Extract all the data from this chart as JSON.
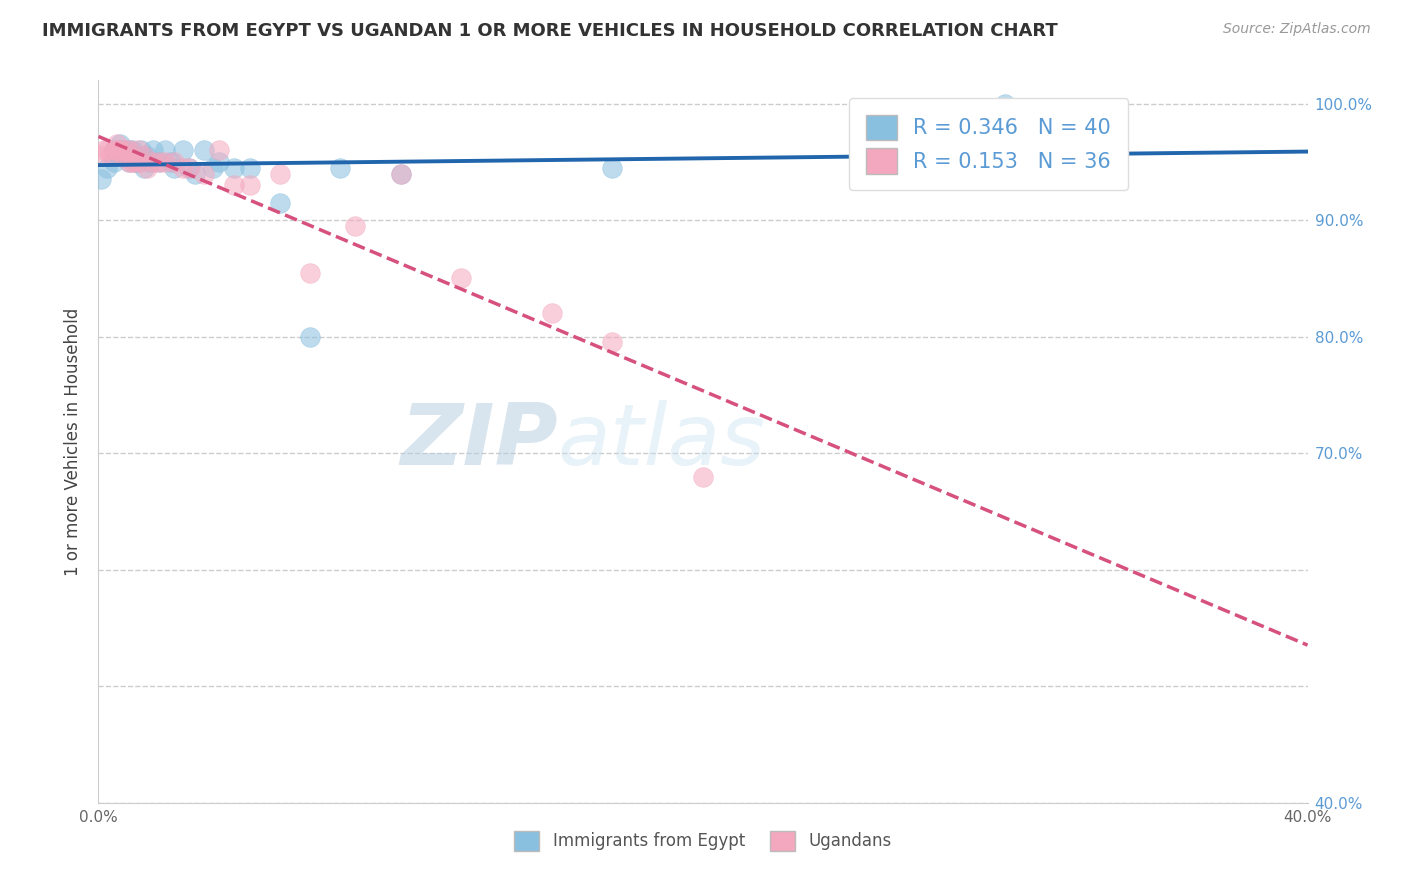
{
  "title": "IMMIGRANTS FROM EGYPT VS UGANDAN 1 OR MORE VEHICLES IN HOUSEHOLD CORRELATION CHART",
  "source_text": "Source: ZipAtlas.com",
  "ylabel": "1 or more Vehicles in Household",
  "xlim": [
    0.0,
    0.4
  ],
  "ylim": [
    0.4,
    1.02
  ],
  "xtick_positions": [
    0.0,
    0.05,
    0.1,
    0.15,
    0.2,
    0.25,
    0.3,
    0.35,
    0.4
  ],
  "xticklabels": [
    "0.0%",
    "",
    "",
    "",
    "",
    "",
    "",
    "",
    "40.0%"
  ],
  "ytick_positions": [
    0.4,
    0.5,
    0.6,
    0.7,
    0.8,
    0.9,
    1.0
  ],
  "yticklabels_right": [
    "40.0%",
    "",
    "",
    "70.0%",
    "80.0%",
    "90.0%",
    "100.0%"
  ],
  "legend_labels": [
    "Immigrants from Egypt",
    "Ugandans"
  ],
  "r_egypt": 0.346,
  "n_egypt": 40,
  "r_uganda": 0.153,
  "n_uganda": 36,
  "color_egypt": "#89bfdf",
  "color_uganda": "#f4a8bf",
  "trendline_color_egypt": "#2166ac",
  "trendline_color_uganda": "#d6517d",
  "watermark_zip": "ZIP",
  "watermark_atlas": "atlas",
  "egypt_x": [
    0.001,
    0.003,
    0.005,
    0.005,
    0.006,
    0.007,
    0.007,
    0.008,
    0.008,
    0.009,
    0.01,
    0.01,
    0.011,
    0.012,
    0.012,
    0.013,
    0.014,
    0.015,
    0.015,
    0.016,
    0.017,
    0.018,
    0.02,
    0.022,
    0.024,
    0.025,
    0.028,
    0.03,
    0.032,
    0.035,
    0.038,
    0.04,
    0.045,
    0.05,
    0.06,
    0.07,
    0.08,
    0.1,
    0.17,
    0.3
  ],
  "egypt_y": [
    0.935,
    0.945,
    0.96,
    0.95,
    0.955,
    0.965,
    0.96,
    0.955,
    0.96,
    0.955,
    0.96,
    0.95,
    0.96,
    0.955,
    0.95,
    0.95,
    0.96,
    0.955,
    0.945,
    0.955,
    0.95,
    0.96,
    0.95,
    0.96,
    0.95,
    0.945,
    0.96,
    0.945,
    0.94,
    0.96,
    0.945,
    0.95,
    0.945,
    0.945,
    0.915,
    0.8,
    0.945,
    0.94,
    0.945,
    1.0
  ],
  "uganda_x": [
    0.001,
    0.002,
    0.003,
    0.004,
    0.005,
    0.006,
    0.006,
    0.007,
    0.008,
    0.009,
    0.01,
    0.01,
    0.011,
    0.012,
    0.013,
    0.014,
    0.015,
    0.016,
    0.018,
    0.02,
    0.022,
    0.025,
    0.028,
    0.03,
    0.035,
    0.04,
    0.045,
    0.05,
    0.06,
    0.07,
    0.085,
    0.1,
    0.12,
    0.15,
    0.17,
    0.2
  ],
  "uganda_y": [
    0.955,
    0.96,
    0.96,
    0.955,
    0.96,
    0.965,
    0.96,
    0.96,
    0.955,
    0.96,
    0.95,
    0.96,
    0.95,
    0.95,
    0.96,
    0.95,
    0.955,
    0.945,
    0.95,
    0.95,
    0.95,
    0.95,
    0.945,
    0.945,
    0.94,
    0.96,
    0.93,
    0.93,
    0.94,
    0.855,
    0.895,
    0.94,
    0.85,
    0.82,
    0.795,
    0.68
  ]
}
